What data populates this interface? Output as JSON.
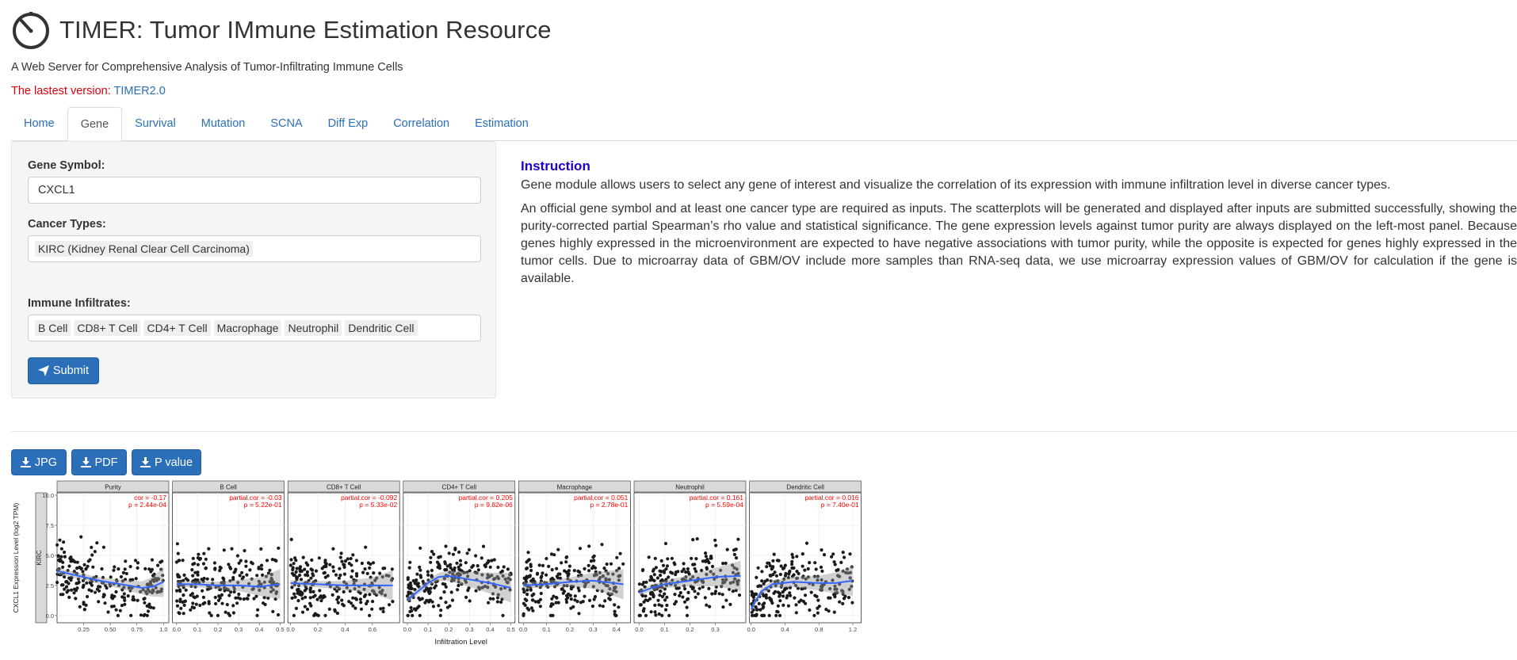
{
  "header": {
    "title": "TIMER: Tumor IMmune Estimation Resource",
    "subtitle": "A Web Server for Comprehensive Analysis of Tumor-Infiltrating Immune Cells",
    "version_label": "The lastest version: ",
    "version_link": "TIMER2.0"
  },
  "tabs": [
    {
      "label": "Home",
      "active": false
    },
    {
      "label": "Gene",
      "active": true
    },
    {
      "label": "Survival",
      "active": false
    },
    {
      "label": "Mutation",
      "active": false
    },
    {
      "label": "SCNA",
      "active": false
    },
    {
      "label": "Diff Exp",
      "active": false
    },
    {
      "label": "Correlation",
      "active": false
    },
    {
      "label": "Estimation",
      "active": false
    }
  ],
  "form": {
    "gene_label": "Gene Symbol:",
    "gene_value": "CXCL1",
    "cancer_label": "Cancer Types:",
    "cancer_chips": [
      "KIRC (Kidney Renal Clear Cell Carcinoma)"
    ],
    "immune_label": "Immune Infiltrates:",
    "immune_chips": [
      "B Cell",
      "CD8+ T Cell",
      "CD4+ T Cell",
      "Macrophage",
      "Neutrophil",
      "Dendritic Cell"
    ],
    "submit_label": "Submit"
  },
  "instruction": {
    "title": "Instruction",
    "p1": "Gene module allows users to select any gene of interest and visualize the correlation of its expression with immune infiltration level in diverse cancer types.",
    "p2": "An official gene symbol and at least one cancer type are required as inputs. The scatterplots will be generated and displayed after inputs are submitted successfully, showing the purity-corrected partial Spearman’s rho value and statistical significance. The gene expression levels against tumor purity are always displayed on the left-most panel. Because genes highly expressed in the microenvironment are expected to have negative associations with tumor purity, while the opposite is expected for genes highly expressed in the tumor cells. Due to microarray data of GBM/OV include more samples than RNA-seq data, we use microarray expression values of GBM/OV for calculation if the gene is available."
  },
  "downloads": [
    {
      "label": "JPG"
    },
    {
      "label": "PDF"
    },
    {
      "label": "P value"
    }
  ],
  "colors": {
    "accent": "#2a6fb8",
    "version_red": "#e0000a",
    "instruction_blue": "#2200cc",
    "stat_red": "#ff0000",
    "fit_blue": "#3366ff"
  },
  "chart_data": {
    "type": "scatter",
    "ylabel": "CXCL1 Expression Level (log2 TPM)",
    "xlabel": "Infiltration Level",
    "row_label": "KIRC",
    "ylim": [
      0,
      10
    ],
    "yticks": [
      0.0,
      2.5,
      5.0,
      7.5,
      10.0
    ],
    "panels": [
      {
        "name": "Purity",
        "xlim": [
          0.0,
          1.05
        ],
        "xticks": [
          0.25,
          0.5,
          0.75,
          1.0
        ],
        "stat1": "cor = -0.17",
        "stat2": "p = 2.44e-04",
        "trend": [
          [
            0.0,
            3.7
          ],
          [
            0.2,
            3.3
          ],
          [
            0.4,
            2.9
          ],
          [
            0.6,
            2.6
          ],
          [
            0.8,
            2.3
          ],
          [
            0.9,
            2.4
          ],
          [
            1.0,
            2.8
          ]
        ]
      },
      {
        "name": "B Cell",
        "xlim": [
          -0.02,
          0.52
        ],
        "xticks": [
          0.0,
          0.1,
          0.2,
          0.3,
          0.4,
          0.5
        ],
        "stat1": "partial.cor = -0.03",
        "stat2": "p = 5.22e-01",
        "trend": [
          [
            0.0,
            2.6
          ],
          [
            0.1,
            2.6
          ],
          [
            0.2,
            2.5
          ],
          [
            0.3,
            2.5
          ],
          [
            0.4,
            2.4
          ],
          [
            0.5,
            2.6
          ]
        ]
      },
      {
        "name": "CD8+ T Cell",
        "xlim": [
          -0.02,
          0.8
        ],
        "xticks": [
          0.0,
          0.2,
          0.4,
          0.6
        ],
        "stat1": "partial.cor = -0.092",
        "stat2": "p = 5.33e-02",
        "trend": [
          [
            0.0,
            2.7
          ],
          [
            0.2,
            2.6
          ],
          [
            0.4,
            2.5
          ],
          [
            0.6,
            2.5
          ],
          [
            0.75,
            2.5
          ]
        ]
      },
      {
        "name": "CD4+ T Cell",
        "xlim": [
          -0.02,
          0.52
        ],
        "xticks": [
          0.0,
          0.1,
          0.2,
          0.3,
          0.4,
          0.5
        ],
        "stat1": "partial.cor = 0.205",
        "stat2": "p = 9.82e-06",
        "trend": [
          [
            0.0,
            1.3
          ],
          [
            0.05,
            2.0
          ],
          [
            0.1,
            2.7
          ],
          [
            0.15,
            3.2
          ],
          [
            0.2,
            3.3
          ],
          [
            0.3,
            3.0
          ],
          [
            0.4,
            2.7
          ],
          [
            0.5,
            2.3
          ]
        ]
      },
      {
        "name": "Macrophage",
        "xlim": [
          -0.02,
          0.46
        ],
        "xticks": [
          0.0,
          0.1,
          0.2,
          0.3,
          0.4
        ],
        "stat1": "partial.cor = 0.051",
        "stat2": "p = 2.78e-01",
        "trend": [
          [
            0.0,
            2.5
          ],
          [
            0.1,
            2.6
          ],
          [
            0.2,
            2.8
          ],
          [
            0.3,
            2.9
          ],
          [
            0.43,
            2.6
          ]
        ]
      },
      {
        "name": "Neutrophil",
        "xlim": [
          -0.02,
          0.42
        ],
        "xticks": [
          0.0,
          0.1,
          0.2,
          0.3
        ],
        "stat1": "partial.cor = 0.161",
        "stat2": "p = 5.59e-04",
        "trend": [
          [
            0.0,
            1.9
          ],
          [
            0.05,
            2.3
          ],
          [
            0.1,
            2.6
          ],
          [
            0.2,
            2.9
          ],
          [
            0.3,
            3.2
          ],
          [
            0.4,
            3.3
          ]
        ]
      },
      {
        "name": "Dendritic Cell",
        "xlim": [
          -0.02,
          1.3
        ],
        "xticks": [
          0.0,
          0.4,
          0.8,
          1.2
        ],
        "stat1": "partial.cor = 0.016",
        "stat2": "p = 7.40e-01",
        "trend": [
          [
            0.0,
            0.5
          ],
          [
            0.05,
            1.2
          ],
          [
            0.12,
            2.0
          ],
          [
            0.25,
            2.6
          ],
          [
            0.5,
            2.8
          ],
          [
            0.8,
            2.7
          ],
          [
            1.0,
            2.7
          ],
          [
            1.2,
            2.9
          ]
        ]
      }
    ]
  }
}
